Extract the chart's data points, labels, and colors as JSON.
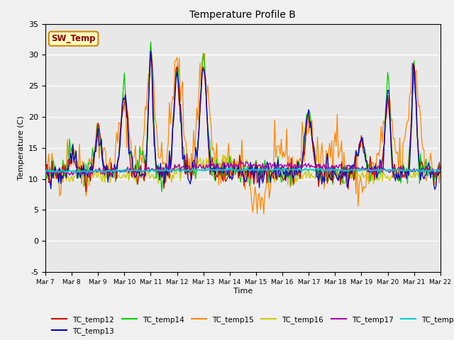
{
  "title": "Temperature Profile B",
  "xlabel": "Time",
  "ylabel": "Temperature (C)",
  "ylim": [
    -5,
    35
  ],
  "xlim": [
    0,
    360
  ],
  "bg_color": "#e8e8e8",
  "sw_temp_label": "SW_Temp",
  "series_colors": {
    "TC_temp12": "#cc0000",
    "TC_temp13": "#0000cc",
    "TC_temp14": "#00cc00",
    "TC_temp15": "#ff8800",
    "TC_temp16": "#cccc00",
    "TC_temp17": "#aa00aa",
    "TC_temp18": "#00cccc"
  },
  "xtick_labels": [
    "Mar 7",
    "Mar 8",
    "Mar 9",
    "Mar 10",
    "Mar 11",
    "Mar 12",
    "Mar 13",
    "Mar 14",
    "Mar 15",
    "Mar 16",
    "Mar 17",
    "Mar 18",
    "Mar 19",
    "Mar 20",
    "Mar 21",
    "Mar 22"
  ],
  "ytick_labels": [
    -5,
    0,
    5,
    10,
    15,
    20,
    25,
    30,
    35
  ]
}
